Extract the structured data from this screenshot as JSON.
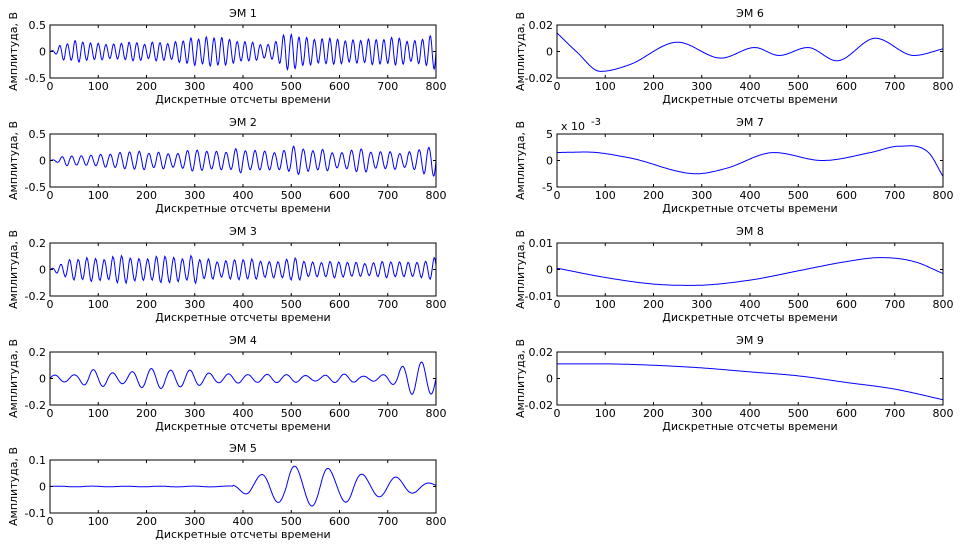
{
  "chart_data": [
    {
      "type": "line",
      "title": "ЭМ 1",
      "xlabel": "Дискретные отсчеты времени",
      "ylabel": "Амплитуда, В",
      "xlim": [
        0,
        800
      ],
      "ylim": [
        -0.5,
        0.5
      ],
      "xticks": [
        "0",
        "100",
        "200",
        "300",
        "400",
        "500",
        "600",
        "700",
        "800"
      ],
      "yticks": [
        "0.5",
        "0",
        "-0.5"
      ],
      "exponent": "",
      "series": [
        {
          "color": "#0000ff",
          "signal": "high-frequency oscillation, amplitude ≈0.1–0.4, up to 0.4 at sample 800",
          "points": [
            [
              0,
              0
            ],
            [
              50,
              0.2
            ],
            [
              100,
              -0.15
            ],
            [
              150,
              0.15
            ],
            [
              200,
              -0.15
            ],
            [
              250,
              0.15
            ],
            [
              300,
              0.25
            ],
            [
              350,
              0.25
            ],
            [
              400,
              -0.2
            ],
            [
              450,
              0.15
            ],
            [
              500,
              0.3
            ],
            [
              550,
              0.25
            ],
            [
              600,
              0.2
            ],
            [
              650,
              0.2
            ],
            [
              700,
              0.25
            ],
            [
              750,
              -0.2
            ],
            [
              800,
              0.4
            ]
          ]
        }
      ]
    },
    {
      "type": "line",
      "title": "ЭМ 2",
      "xlabel": "Дискретные отсчеты времени",
      "ylabel": "Амплитуда, В",
      "xlim": [
        0,
        800
      ],
      "ylim": [
        -0.5,
        0.5
      ],
      "xticks": [
        "0",
        "100",
        "200",
        "300",
        "400",
        "500",
        "600",
        "700",
        "800"
      ],
      "yticks": [
        "0.5",
        "0",
        "-0.5"
      ],
      "exponent": "",
      "series": [
        {
          "color": "#0000ff",
          "signal": "oscillation, amplitude ≈0.1–0.25, up to 0.35 at sample 800",
          "points": [
            [
              0,
              0
            ],
            [
              50,
              0.1
            ],
            [
              100,
              -0.1
            ],
            [
              150,
              0.15
            ],
            [
              200,
              0.15
            ],
            [
              250,
              -0.15
            ],
            [
              300,
              0.2
            ],
            [
              350,
              0.15
            ],
            [
              400,
              0.2
            ],
            [
              450,
              -0.15
            ],
            [
              500,
              0.25
            ],
            [
              550,
              0.2
            ],
            [
              600,
              0.15
            ],
            [
              650,
              0.2
            ],
            [
              700,
              -0.15
            ],
            [
              750,
              0.15
            ],
            [
              800,
              0.35
            ]
          ]
        }
      ]
    },
    {
      "type": "line",
      "title": "ЭМ 3",
      "xlabel": "Дискретные отсчеты времени",
      "ylabel": "Амплитуда, В",
      "xlim": [
        0,
        800
      ],
      "ylim": [
        -0.2,
        0.2
      ],
      "xticks": [
        "0",
        "100",
        "200",
        "300",
        "400",
        "500",
        "600",
        "700",
        "800"
      ],
      "yticks": [
        "0.2",
        "0",
        "-0.2"
      ],
      "exponent": "",
      "series": [
        {
          "color": "#0000ff",
          "signal": "oscillation, ~43 periods, amplitude ≈0.07–0.09",
          "points": [
            [
              0,
              0
            ],
            [
              50,
              0.08
            ],
            [
              100,
              0.08
            ],
            [
              150,
              0.09
            ],
            [
              200,
              0.09
            ],
            [
              250,
              0.09
            ],
            [
              300,
              0.09
            ],
            [
              350,
              0.06
            ],
            [
              400,
              0.08
            ],
            [
              450,
              0.06
            ],
            [
              500,
              0.08
            ],
            [
              550,
              0.05
            ],
            [
              600,
              0.06
            ],
            [
              650,
              0.05
            ],
            [
              700,
              0.06
            ],
            [
              750,
              0.05
            ],
            [
              800,
              -0.1
            ]
          ]
        }
      ]
    },
    {
      "type": "line",
      "title": "ЭМ 4",
      "xlabel": "Дискретные отсчеты времени",
      "ylabel": "Амплитуда, В",
      "xlim": [
        0,
        800
      ],
      "ylim": [
        -0.2,
        0.2
      ],
      "xticks": [
        "0",
        "100",
        "200",
        "300",
        "400",
        "500",
        "600",
        "700",
        "800"
      ],
      "yticks": [
        "0.2",
        "0",
        "-0.2"
      ],
      "exponent": "",
      "series": [
        {
          "color": "#0000ff",
          "signal": "oscillation, ~20 periods, amplitude ≈0.03–0.11",
          "points": [
            [
              0,
              0.03
            ],
            [
              50,
              -0.03
            ],
            [
              80,
              0.06
            ],
            [
              150,
              -0.04
            ],
            [
              200,
              0.07
            ],
            [
              280,
              0.07
            ],
            [
              350,
              0.03
            ],
            [
              400,
              -0.03
            ],
            [
              450,
              0.03
            ],
            [
              500,
              0.03
            ],
            [
              550,
              -0.02
            ],
            [
              600,
              0.03
            ],
            [
              650,
              0.02
            ],
            [
              700,
              -0.04
            ],
            [
              760,
              0.11
            ],
            [
              800,
              -0.1
            ]
          ]
        }
      ]
    },
    {
      "type": "line",
      "title": "ЭМ 5",
      "xlabel": "Дискретные отсчеты времени",
      "ylabel": "Амплитуда, В",
      "xlim": [
        0,
        800
      ],
      "ylim": [
        -0.1,
        0.1
      ],
      "xticks": [
        "0",
        "100",
        "200",
        "300",
        "400",
        "500",
        "600",
        "700",
        "800"
      ],
      "yticks": [
        "0.1",
        "0",
        "-0.1"
      ],
      "exponent": "",
      "series": [
        {
          "color": "#0000ff",
          "signal": "low amplitude until ~380, then waves with peaks ≈0.07 near 490 and 560",
          "points": [
            [
              0,
              -0.005
            ],
            [
              70,
              0.005
            ],
            [
              150,
              -0.003
            ],
            [
              280,
              0.005
            ],
            [
              340,
              -0.005
            ],
            [
              380,
              0.01
            ],
            [
              420,
              0.04
            ],
            [
              455,
              -0.065
            ],
            [
              490,
              0.075
            ],
            [
              525,
              -0.065
            ],
            [
              560,
              0.07
            ],
            [
              595,
              -0.05
            ],
            [
              630,
              0.055
            ],
            [
              665,
              -0.04
            ],
            [
              700,
              0.04
            ],
            [
              740,
              -0.03
            ],
            [
              800,
              0.01
            ]
          ]
        }
      ]
    },
    {
      "type": "line",
      "title": "ЭМ 6",
      "xlabel": "Дискретные отсчеты времени",
      "ylabel": "Амплитуда, В",
      "xlim": [
        0,
        800
      ],
      "ylim": [
        -0.02,
        0.02
      ],
      "xticks": [
        "0",
        "100",
        "200",
        "300",
        "400",
        "500",
        "600",
        "700",
        "800"
      ],
      "yticks": [
        "0.02",
        "0",
        "-0.02"
      ],
      "exponent": "",
      "series": [
        {
          "color": "#0000ff",
          "points": [
            [
              0,
              0.014
            ],
            [
              40,
              0
            ],
            [
              90,
              -0.015
            ],
            [
              150,
              -0.01
            ],
            [
              250,
              0.007
            ],
            [
              340,
              -0.005
            ],
            [
              410,
              0.003
            ],
            [
              460,
              -0.003
            ],
            [
              520,
              0.003
            ],
            [
              580,
              -0.007
            ],
            [
              660,
              0.01
            ],
            [
              740,
              -0.003
            ],
            [
              800,
              0.002
            ]
          ]
        }
      ]
    },
    {
      "type": "line",
      "title": "ЭМ 7",
      "xlabel": "Дискретные отсчеты времени",
      "ylabel": "Амплитуда, В",
      "xlim": [
        0,
        800
      ],
      "ylim": [
        -5,
        5
      ],
      "xticks": [
        "0",
        "100",
        "200",
        "300",
        "400",
        "500",
        "600",
        "700",
        "800"
      ],
      "yticks": [
        "5",
        "0",
        "-5"
      ],
      "exponent": "x 10",
      "exponent_power": "-3",
      "series": [
        {
          "color": "#0000ff",
          "points": [
            [
              0,
              1.5
            ],
            [
              60,
              1.6
            ],
            [
              150,
              0.5
            ],
            [
              290,
              -2.5
            ],
            [
              350,
              -1.5
            ],
            [
              450,
              1.5
            ],
            [
              550,
              0
            ],
            [
              650,
              1.5
            ],
            [
              710,
              2.7
            ],
            [
              770,
              1.5
            ],
            [
              800,
              -3
            ]
          ]
        }
      ]
    },
    {
      "type": "line",
      "title": "ЭМ 8",
      "xlabel": "Дискретные отсчеты времени",
      "ylabel": "Амплитуда, В",
      "xlim": [
        0,
        800
      ],
      "ylim": [
        -0.01,
        0.01
      ],
      "xticks": [
        "0",
        "100",
        "200",
        "300",
        "400",
        "500",
        "600",
        "700",
        "800"
      ],
      "yticks": [
        "0.01",
        "0",
        "-0.01"
      ],
      "exponent": "",
      "series": [
        {
          "color": "#0000ff",
          "points": [
            [
              0,
              0.0005
            ],
            [
              100,
              -0.003
            ],
            [
              200,
              -0.0055
            ],
            [
              280,
              -0.006
            ],
            [
              400,
              -0.004
            ],
            [
              500,
              -0.0005
            ],
            [
              600,
              0.003
            ],
            [
              670,
              0.0045
            ],
            [
              740,
              0.003
            ],
            [
              800,
              -0.0015
            ]
          ]
        }
      ]
    },
    {
      "type": "line",
      "title": "ЭМ 9",
      "xlabel": "Дискретные отсчеты времени",
      "ylabel": "Амплитуда, В",
      "xlim": [
        0,
        800
      ],
      "ylim": [
        -0.02,
        0.02
      ],
      "xticks": [
        "0",
        "100",
        "200",
        "300",
        "400",
        "500",
        "600",
        "700",
        "800"
      ],
      "yticks": [
        "0.02",
        "0",
        "-0.02"
      ],
      "exponent": "",
      "series": [
        {
          "color": "#0000ff",
          "points": [
            [
              0,
              0.011
            ],
            [
              100,
              0.011
            ],
            [
              200,
              0.01
            ],
            [
              300,
              0.008
            ],
            [
              400,
              0.005
            ],
            [
              500,
              0.002
            ],
            [
              600,
              -0.003
            ],
            [
              700,
              -0.008
            ],
            [
              800,
              -0.016
            ]
          ]
        }
      ]
    }
  ]
}
